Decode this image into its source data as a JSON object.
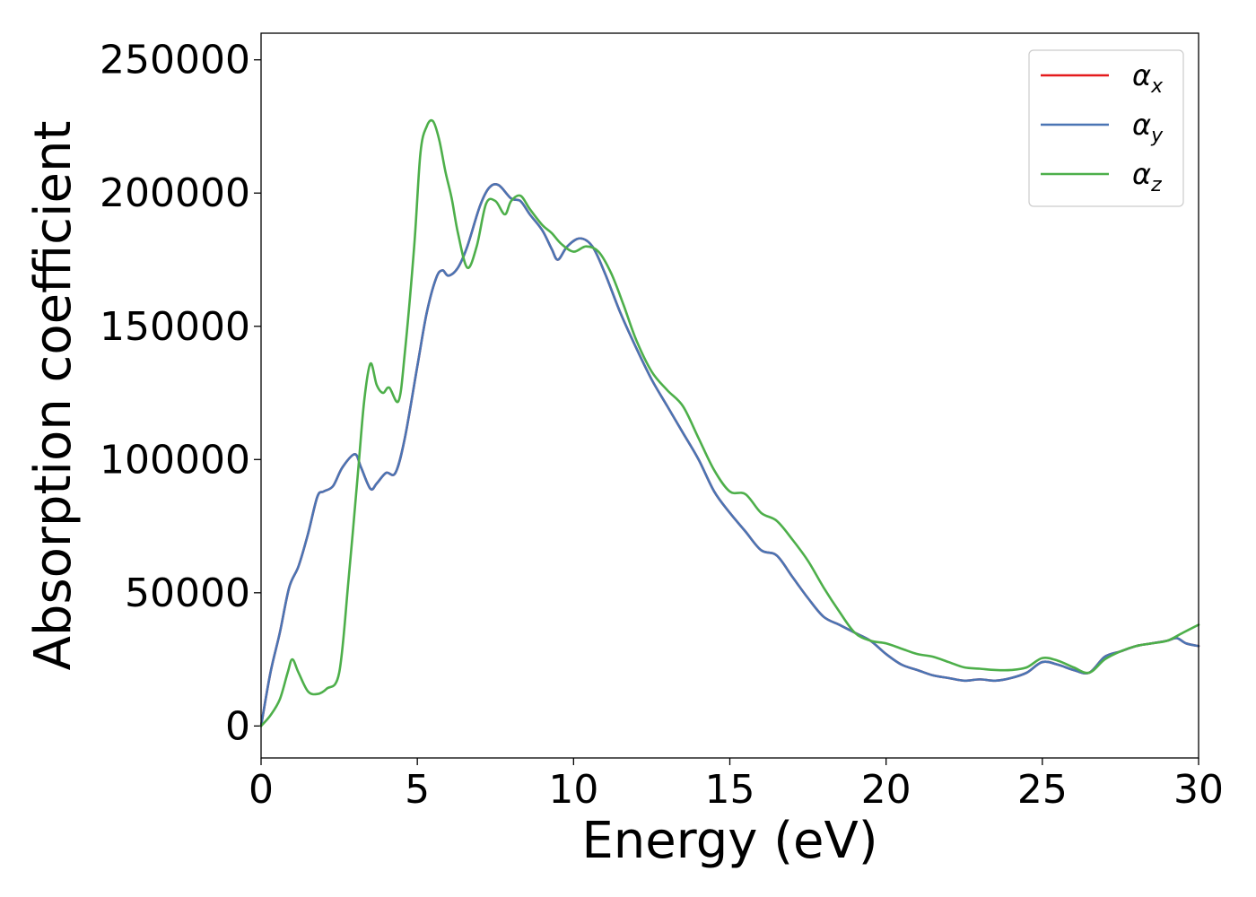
{
  "chart_data": {
    "type": "line",
    "title": "",
    "xlabel": "Energy (eV)",
    "ylabel": "Absorption coefficient",
    "xlim": [
      0,
      30
    ],
    "ylim": [
      -12000,
      260000
    ],
    "xticks": [
      0,
      5,
      10,
      15,
      20,
      25,
      30
    ],
    "yticks": [
      0,
      50000,
      100000,
      150000,
      200000,
      250000
    ],
    "grid": false,
    "legend_position": "top-right",
    "series": [
      {
        "name": "αx",
        "symbol": "α",
        "subscript": "x",
        "color": "#e41a1c",
        "x": [
          0,
          0.3,
          0.6,
          0.9,
          1.2,
          1.5,
          1.8,
          2.0,
          2.3,
          2.6,
          3.0,
          3.2,
          3.5,
          3.7,
          4.0,
          4.3,
          4.6,
          5.0,
          5.3,
          5.6,
          5.8,
          6.0,
          6.3,
          6.6,
          7.0,
          7.3,
          7.6,
          8.0,
          8.3,
          8.6,
          9.0,
          9.3,
          9.5,
          9.8,
          10.2,
          10.6,
          11.0,
          11.5,
          12.0,
          12.5,
          13.0,
          13.5,
          14.0,
          14.5,
          15.0,
          15.5,
          16.0,
          16.5,
          17.0,
          17.5,
          18.0,
          18.5,
          19.0,
          19.5,
          20.0,
          20.5,
          21.0,
          21.5,
          22.0,
          22.5,
          23.0,
          23.5,
          24.0,
          24.5,
          25.0,
          25.5,
          26.0,
          26.5,
          27.0,
          27.5,
          28.0,
          28.5,
          29.0,
          29.3,
          29.6,
          30.0
        ],
        "values": [
          0,
          20000,
          35000,
          52000,
          60000,
          72000,
          86000,
          88000,
          90000,
          97000,
          102000,
          97000,
          89000,
          91000,
          95000,
          95000,
          108000,
          135000,
          155000,
          168000,
          171000,
          169000,
          172000,
          180000,
          195000,
          202000,
          203000,
          198000,
          197000,
          192000,
          186000,
          179000,
          175000,
          180000,
          183000,
          180000,
          170000,
          155000,
          142000,
          130000,
          120000,
          110000,
          100000,
          88000,
          80000,
          73000,
          66000,
          64000,
          56000,
          48000,
          41000,
          38000,
          35000,
          32000,
          27000,
          23000,
          21000,
          19000,
          18000,
          17000,
          17500,
          17000,
          18000,
          20000,
          24000,
          23000,
          21000,
          20000,
          26000,
          28000,
          30000,
          31000,
          32000,
          33000,
          31000,
          30000
        ]
      },
      {
        "name": "αy",
        "symbol": "α",
        "subscript": "y",
        "color": "#4a75b4",
        "x": [
          0,
          0.3,
          0.6,
          0.9,
          1.2,
          1.5,
          1.8,
          2.0,
          2.3,
          2.6,
          3.0,
          3.2,
          3.5,
          3.7,
          4.0,
          4.3,
          4.6,
          5.0,
          5.3,
          5.6,
          5.8,
          6.0,
          6.3,
          6.6,
          7.0,
          7.3,
          7.6,
          8.0,
          8.3,
          8.6,
          9.0,
          9.3,
          9.5,
          9.8,
          10.2,
          10.6,
          11.0,
          11.5,
          12.0,
          12.5,
          13.0,
          13.5,
          14.0,
          14.5,
          15.0,
          15.5,
          16.0,
          16.5,
          17.0,
          17.5,
          18.0,
          18.5,
          19.0,
          19.5,
          20.0,
          20.5,
          21.0,
          21.5,
          22.0,
          22.5,
          23.0,
          23.5,
          24.0,
          24.5,
          25.0,
          25.5,
          26.0,
          26.5,
          27.0,
          27.5,
          28.0,
          28.5,
          29.0,
          29.3,
          29.6,
          30.0
        ],
        "values": [
          0,
          20000,
          35000,
          52000,
          60000,
          72000,
          86000,
          88000,
          90000,
          97000,
          102000,
          97000,
          89000,
          91000,
          95000,
          95000,
          108000,
          135000,
          155000,
          168000,
          171000,
          169000,
          172000,
          180000,
          195000,
          202000,
          203000,
          198000,
          197000,
          192000,
          186000,
          179000,
          175000,
          180000,
          183000,
          180000,
          170000,
          155000,
          142000,
          130000,
          120000,
          110000,
          100000,
          88000,
          80000,
          73000,
          66000,
          64000,
          56000,
          48000,
          41000,
          38000,
          35000,
          32000,
          27000,
          23000,
          21000,
          19000,
          18000,
          17000,
          17500,
          17000,
          18000,
          20000,
          24000,
          23000,
          21000,
          20000,
          26000,
          28000,
          30000,
          31000,
          32000,
          33000,
          31000,
          30000
        ]
      },
      {
        "name": "αz",
        "symbol": "α",
        "subscript": "z",
        "color": "#4daf4a",
        "x": [
          0,
          0.3,
          0.6,
          0.85,
          1.0,
          1.2,
          1.5,
          1.8,
          2.1,
          2.5,
          2.8,
          3.1,
          3.3,
          3.5,
          3.7,
          3.9,
          4.1,
          4.4,
          4.6,
          4.9,
          5.1,
          5.3,
          5.5,
          5.7,
          5.9,
          6.1,
          6.3,
          6.6,
          6.9,
          7.2,
          7.5,
          7.8,
          8.0,
          8.3,
          8.6,
          9.0,
          9.3,
          9.6,
          10.0,
          10.4,
          10.8,
          11.2,
          11.6,
          12.0,
          12.5,
          13.0,
          13.5,
          14.0,
          14.5,
          15.0,
          15.5,
          16.0,
          16.5,
          17.0,
          17.5,
          18.0,
          18.5,
          19.0,
          19.5,
          20.0,
          20.5,
          21.0,
          21.5,
          22.0,
          22.5,
          23.0,
          23.5,
          24.0,
          24.5,
          25.0,
          25.5,
          26.0,
          26.5,
          27.0,
          27.5,
          28.0,
          28.5,
          29.0,
          29.5,
          30.0
        ],
        "values": [
          0,
          4000,
          10000,
          20000,
          25000,
          20000,
          13000,
          12000,
          14000,
          20000,
          55000,
          95000,
          122000,
          136000,
          128000,
          125000,
          127000,
          122000,
          140000,
          180000,
          215000,
          225000,
          227000,
          220000,
          208000,
          198000,
          185000,
          172000,
          180000,
          196000,
          197000,
          192000,
          197000,
          199000,
          194000,
          188000,
          185000,
          181000,
          178000,
          180000,
          178000,
          170000,
          158000,
          145000,
          133000,
          126000,
          120000,
          108000,
          96000,
          88000,
          87000,
          80000,
          77000,
          70000,
          62000,
          52000,
          43000,
          35000,
          32000,
          31000,
          29000,
          27000,
          26000,
          24000,
          22000,
          21500,
          21000,
          21000,
          22000,
          25500,
          24500,
          22000,
          20000,
          25000,
          28000,
          30000,
          31000,
          32000,
          35000,
          38000
        ]
      }
    ]
  }
}
